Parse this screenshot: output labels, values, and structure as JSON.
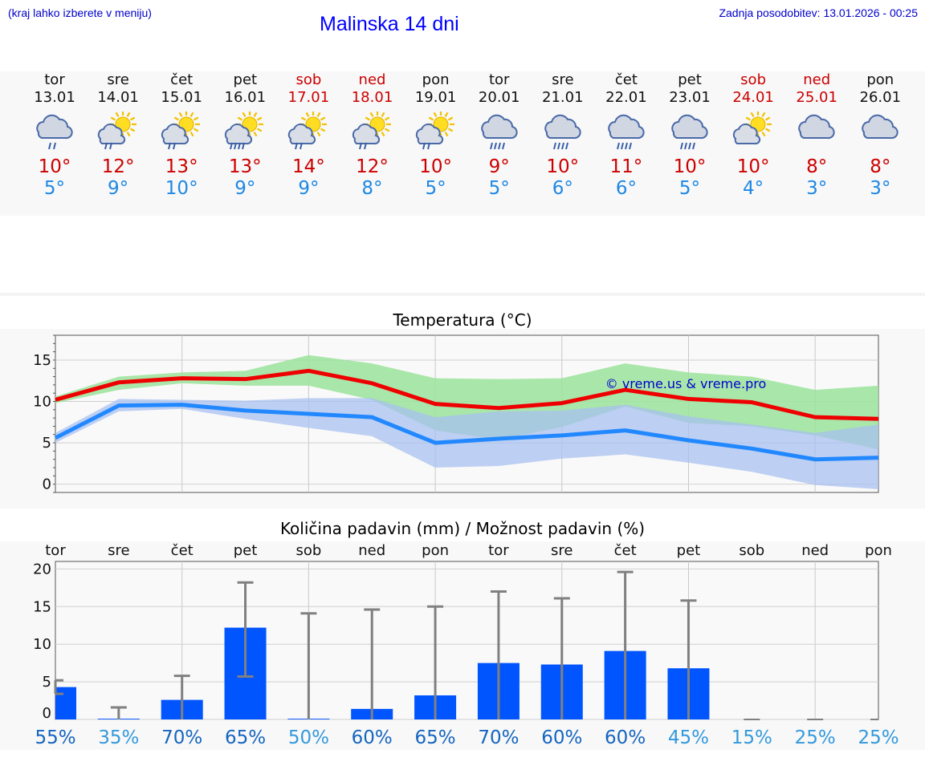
{
  "header": {
    "note": "(kraj lahko izberete v meniju)",
    "title": "Malinska 14 dni",
    "updated": "Zadnja posodobitev: 13.01.2026 - 00:25"
  },
  "days": [
    {
      "name": "tor",
      "date": "13.01",
      "weekend": false,
      "icon": "cloud-rain-icon",
      "icon_type": "cloud-rain",
      "tmax": "10°",
      "tmin": "5°"
    },
    {
      "name": "sre",
      "date": "14.01",
      "weekend": false,
      "icon": "sun-cloud-rain-icon",
      "icon_type": "sun-cloud-rain",
      "tmax": "12°",
      "tmin": "9°"
    },
    {
      "name": "čet",
      "date": "15.01",
      "weekend": false,
      "icon": "sun-cloud-rain-icon",
      "icon_type": "sun-cloud-rain",
      "tmax": "13°",
      "tmin": "10°"
    },
    {
      "name": "pet",
      "date": "16.01",
      "weekend": false,
      "icon": "sun-cloud-heavy-rain-icon",
      "icon_type": "sun-cloud-heavy-rain",
      "tmax": "13°",
      "tmin": "9°"
    },
    {
      "name": "sob",
      "date": "17.01",
      "weekend": true,
      "icon": "sun-cloud-rain-icon",
      "icon_type": "sun-cloud-rain",
      "tmax": "14°",
      "tmin": "9°"
    },
    {
      "name": "ned",
      "date": "18.01",
      "weekend": true,
      "icon": "sun-cloud-rain-icon",
      "icon_type": "sun-cloud-rain",
      "tmax": "12°",
      "tmin": "8°"
    },
    {
      "name": "pon",
      "date": "19.01",
      "weekend": false,
      "icon": "sun-cloud-rain-icon",
      "icon_type": "sun-cloud-rain",
      "tmax": "10°",
      "tmin": "5°"
    },
    {
      "name": "tor",
      "date": "20.01",
      "weekend": false,
      "icon": "cloud-heavy-rain-icon",
      "icon_type": "cloud-heavy-rain",
      "tmax": "9°",
      "tmin": "5°"
    },
    {
      "name": "sre",
      "date": "21.01",
      "weekend": false,
      "icon": "cloud-heavy-rain-icon",
      "icon_type": "cloud-heavy-rain",
      "tmax": "10°",
      "tmin": "6°"
    },
    {
      "name": "čet",
      "date": "22.01",
      "weekend": false,
      "icon": "cloud-heavy-rain-icon",
      "icon_type": "cloud-heavy-rain",
      "tmax": "11°",
      "tmin": "6°"
    },
    {
      "name": "pet",
      "date": "23.01",
      "weekend": false,
      "icon": "cloud-heavy-rain-icon",
      "icon_type": "cloud-heavy-rain",
      "tmax": "10°",
      "tmin": "5°"
    },
    {
      "name": "sob",
      "date": "24.01",
      "weekend": true,
      "icon": "sun-cloud-icon",
      "icon_type": "sun-cloud",
      "tmax": "10°",
      "tmin": "4°"
    },
    {
      "name": "ned",
      "date": "25.01",
      "weekend": true,
      "icon": "cloud-icon",
      "icon_type": "cloud",
      "tmax": "8°",
      "tmin": "3°"
    },
    {
      "name": "pon",
      "date": "26.01",
      "weekend": false,
      "icon": "cloud-icon",
      "icon_type": "cloud",
      "tmax": "8°",
      "tmin": "3°"
    }
  ],
  "colors": {
    "weekend": "#cc0000",
    "tmax": "#cc0000",
    "tmin": "#1e88e5",
    "max_line": "#ee0000",
    "min_line": "#2288ff",
    "max_band": "#9be39b",
    "min_band": "#a8c0f0",
    "overlap_band": "#6fc0a0",
    "bar": "#0055ff",
    "errbar": "#808080",
    "pct_dark": "#1565c0",
    "pct_light": "#3399dd"
  },
  "chart_data": [
    {
      "type": "line",
      "title": "Temperatura (°C)",
      "watermark": "© vreme.us & vreme.pro",
      "ylim": [
        -1,
        18
      ],
      "yticks": [
        0,
        5,
        10,
        15
      ],
      "x": [
        0,
        1,
        2,
        3,
        4,
        5,
        6,
        7,
        8,
        9,
        10,
        11,
        12,
        13
      ],
      "series": [
        {
          "name": "max",
          "values": [
            10.2,
            12.3,
            12.8,
            12.7,
            13.7,
            12.2,
            9.7,
            9.2,
            9.8,
            11.4,
            10.3,
            9.9,
            8.1,
            7.9
          ],
          "band_low": [
            9.8,
            11.4,
            12.2,
            11.9,
            11.9,
            10.2,
            6.5,
            5.4,
            6.9,
            9.4,
            7.4,
            7.0,
            5.9,
            4.2
          ],
          "band_high": [
            10.6,
            13.0,
            13.5,
            13.7,
            15.6,
            14.6,
            12.8,
            12.7,
            12.8,
            14.6,
            13.5,
            13.0,
            11.4,
            11.9
          ]
        },
        {
          "name": "min",
          "values": [
            5.6,
            9.5,
            9.6,
            8.9,
            8.5,
            8.1,
            5.0,
            5.5,
            5.9,
            6.5,
            5.3,
            4.3,
            3.0,
            3.2
          ],
          "band_low": [
            5.0,
            8.8,
            9.1,
            7.9,
            6.8,
            5.8,
            2.0,
            2.2,
            3.1,
            3.6,
            2.6,
            1.5,
            -0.1,
            -0.6
          ],
          "band_high": [
            6.2,
            10.3,
            10.2,
            10.1,
            10.4,
            10.4,
            8.1,
            8.8,
            8.9,
            9.6,
            8.2,
            7.2,
            6.2,
            7.2
          ]
        }
      ]
    },
    {
      "type": "bar",
      "title": "Količina padavin (mm) / Možnost padavin (%)",
      "categories": [
        "tor",
        "sre",
        "čet",
        "pet",
        "sob",
        "ned",
        "pon",
        "tor",
        "sre",
        "čet",
        "pet",
        "sob",
        "ned",
        "pon"
      ],
      "ylim": [
        0,
        21
      ],
      "yticks": [
        0,
        5,
        10,
        15,
        20
      ],
      "values": [
        4.3,
        0.1,
        2.6,
        12.2,
        0.1,
        1.4,
        3.2,
        7.5,
        7.3,
        9.1,
        6.8,
        0,
        0,
        0
      ],
      "err_low": [
        3.4,
        0,
        0,
        5.7,
        0,
        0,
        0,
        0,
        0,
        0,
        0,
        0,
        0,
        0
      ],
      "err_high": [
        5.2,
        1.6,
        5.8,
        18.2,
        14.1,
        14.6,
        15.0,
        17.0,
        16.1,
        19.6,
        15.8,
        0,
        0,
        0
      ],
      "chance": [
        "55%",
        "35%",
        "70%",
        "65%",
        "50%",
        "60%",
        "65%",
        "70%",
        "60%",
        "60%",
        "45%",
        "15%",
        "25%",
        "25%"
      ],
      "chance_value": [
        55,
        35,
        70,
        65,
        50,
        60,
        65,
        70,
        60,
        60,
        45,
        15,
        25,
        25
      ]
    }
  ]
}
